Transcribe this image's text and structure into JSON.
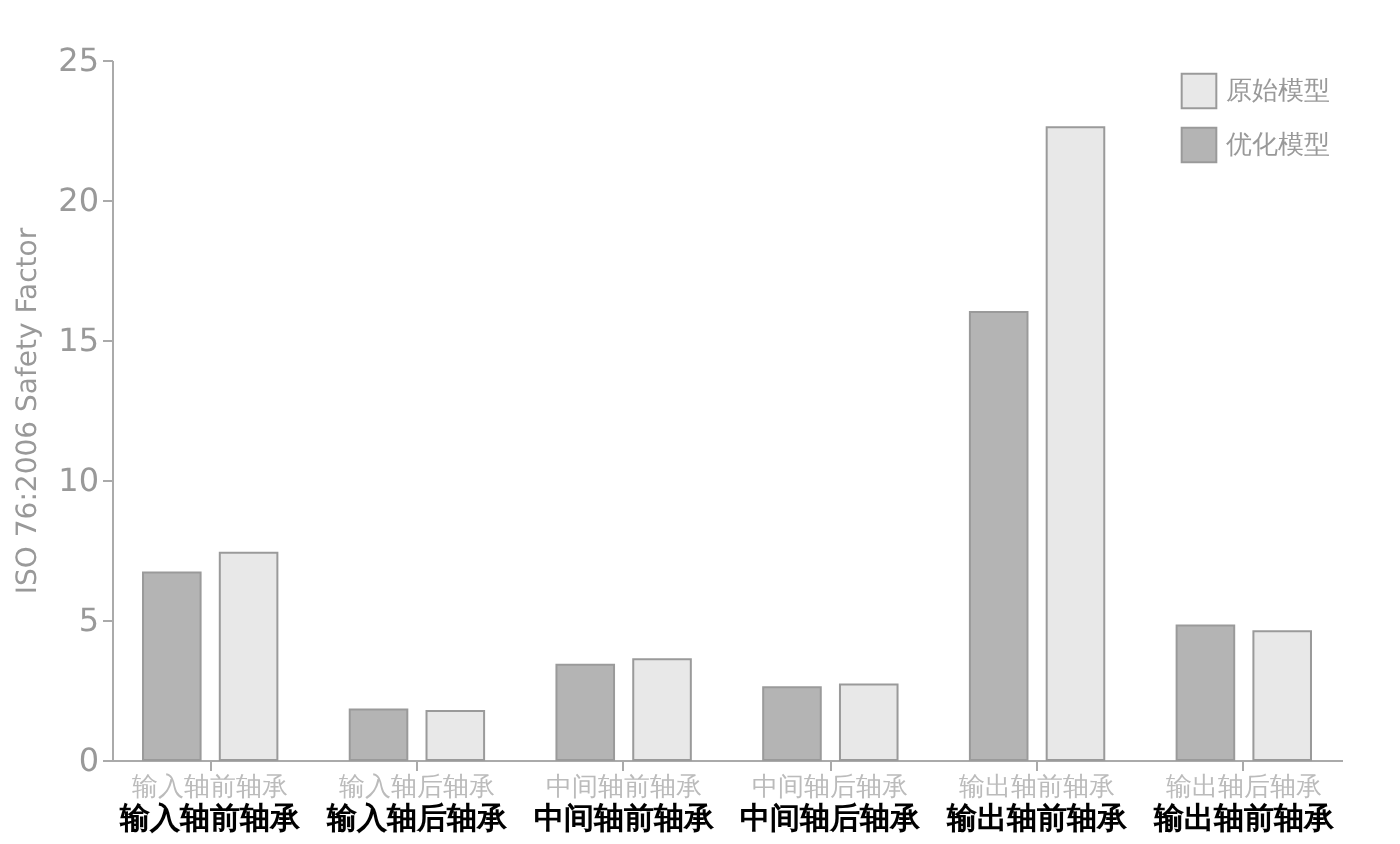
{
  "chart_data": {
    "type": "bar",
    "ylabel": "ISO 76:2006 Safety Factor",
    "categories": [
      "输入轴前轴承",
      "输入轴后轴承",
      "中间轴前轴承",
      "中间轴后轴承",
      "输出轴前轴承",
      "输出轴后轴承"
    ],
    "series": [
      {
        "name": "优化模型",
        "color": "#b4b4b4",
        "values": [
          6.7,
          1.8,
          3.4,
          2.6,
          16.0,
          4.8
        ]
      },
      {
        "name": "原始模型",
        "color": "#e8e8e8",
        "values": [
          7.4,
          1.75,
          3.6,
          2.7,
          22.6,
          4.6
        ]
      }
    ],
    "annotations": [
      "输入轴前轴承",
      "输入轴后轴承",
      "中间轴前轴承",
      "中间轴后轴承",
      "输出轴前轴承",
      "输出轴前轴承"
    ],
    "ylim": [
      0,
      25
    ],
    "yticks": [
      0,
      5,
      10,
      15,
      20,
      25
    ],
    "grid": false,
    "legend": "top right"
  }
}
